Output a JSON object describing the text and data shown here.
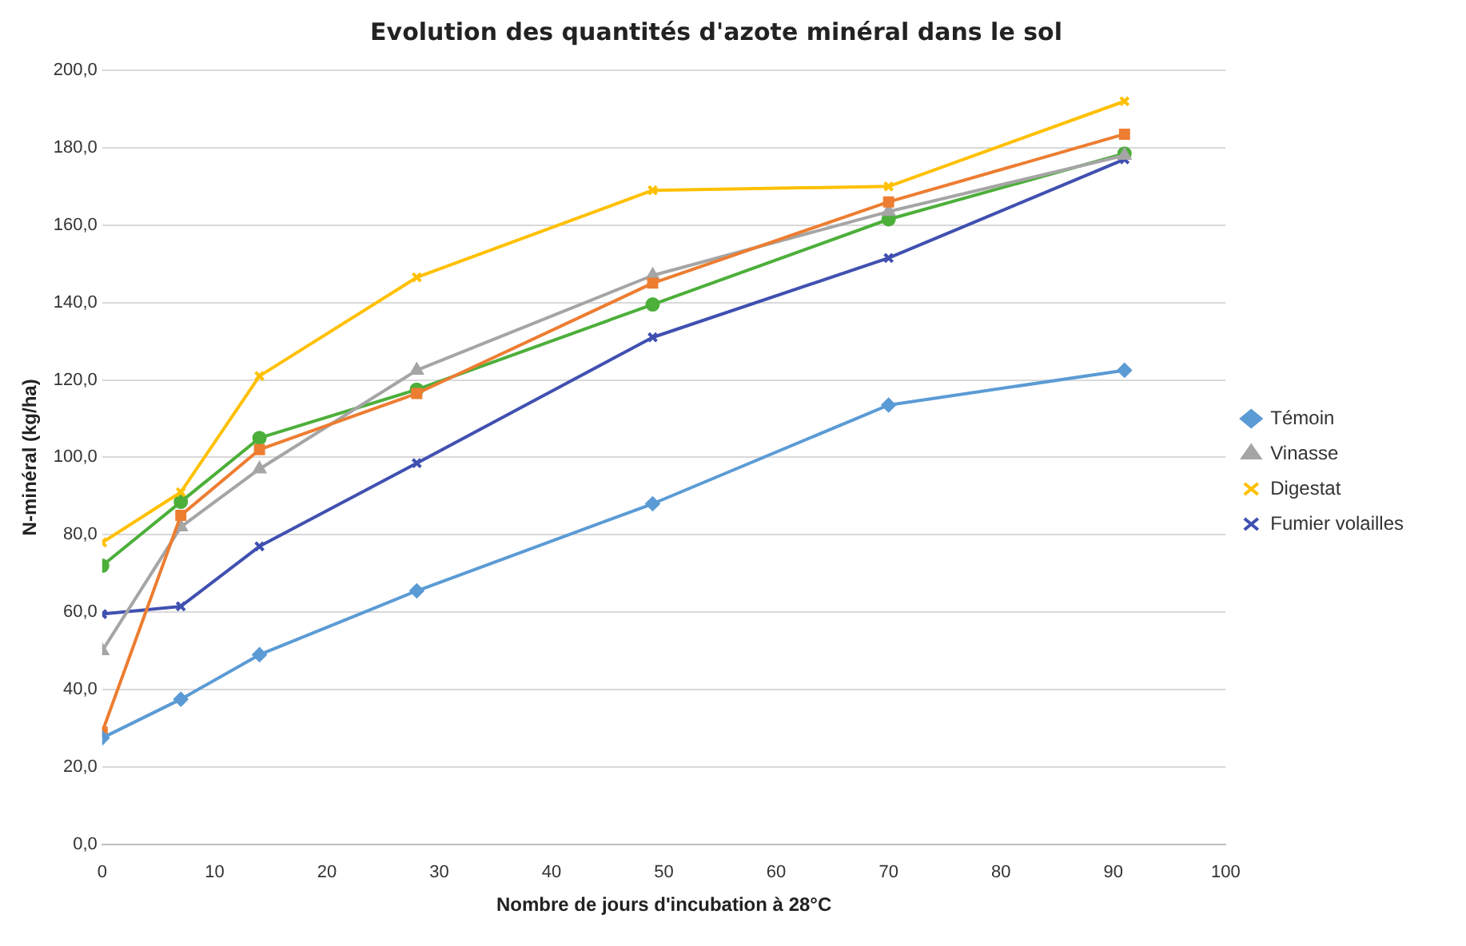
{
  "chart_data": {
    "type": "line",
    "title": "Evolution des quantités d'azote minéral dans le sol",
    "xlabel": "Nombre de jours d'incubation à 28°C",
    "ylabel": "N-minéral (kg/ha)",
    "x": [
      0,
      7,
      14,
      28,
      49,
      70,
      91
    ],
    "series": [
      {
        "name": "Témoin",
        "color": "#5b9bd5",
        "marker": "diamond",
        "values": [
          27.5,
          37.5,
          49,
          65.5,
          88,
          113.5,
          122.5
        ]
      },
      {
        "color": "#ed7d31",
        "marker": "square",
        "values": [
          29,
          85,
          102,
          116.5,
          145,
          166,
          183.5
        ]
      },
      {
        "name": "Vinasse",
        "color": "#a5a5a5",
        "marker": "triangle",
        "values": [
          50,
          82,
          97,
          122.5,
          147,
          163.5,
          178
        ]
      },
      {
        "name": "Digestat",
        "color": "#ffc000",
        "marker": "cross",
        "values": [
          78,
          91,
          121,
          146.5,
          169,
          170,
          192
        ]
      },
      {
        "name": "Fumier volailles",
        "color": "#4050b0",
        "marker": "cross",
        "values": [
          59.5,
          61.5,
          77,
          98.5,
          131,
          151.5,
          177
        ]
      },
      {
        "color": "#4caf3a",
        "marker": "circle",
        "values": [
          72,
          88.5,
          105,
          117.5,
          139.5,
          161.5,
          178.5
        ]
      }
    ],
    "xlim": [
      0,
      100
    ],
    "xticks": [
      0,
      10,
      20,
      30,
      40,
      50,
      60,
      70,
      80,
      90,
      100
    ],
    "ylim": [
      0,
      200
    ],
    "yticks": [
      {
        "value": 0,
        "label": "0,0"
      },
      {
        "value": 20,
        "label": "20,0"
      },
      {
        "value": 40,
        "label": "40,0"
      },
      {
        "value": 60,
        "label": "60,0"
      },
      {
        "value": 80,
        "label": "80,0"
      },
      {
        "value": 100,
        "label": "100,0"
      },
      {
        "value": 120,
        "label": "120,0"
      },
      {
        "value": 140,
        "label": "140,0"
      },
      {
        "value": 160,
        "label": "160,0"
      },
      {
        "value": 180,
        "label": "180,0"
      },
      {
        "value": 200,
        "label": "200,0"
      }
    ],
    "grid": "y",
    "legend": "right",
    "line_style": "solid"
  }
}
